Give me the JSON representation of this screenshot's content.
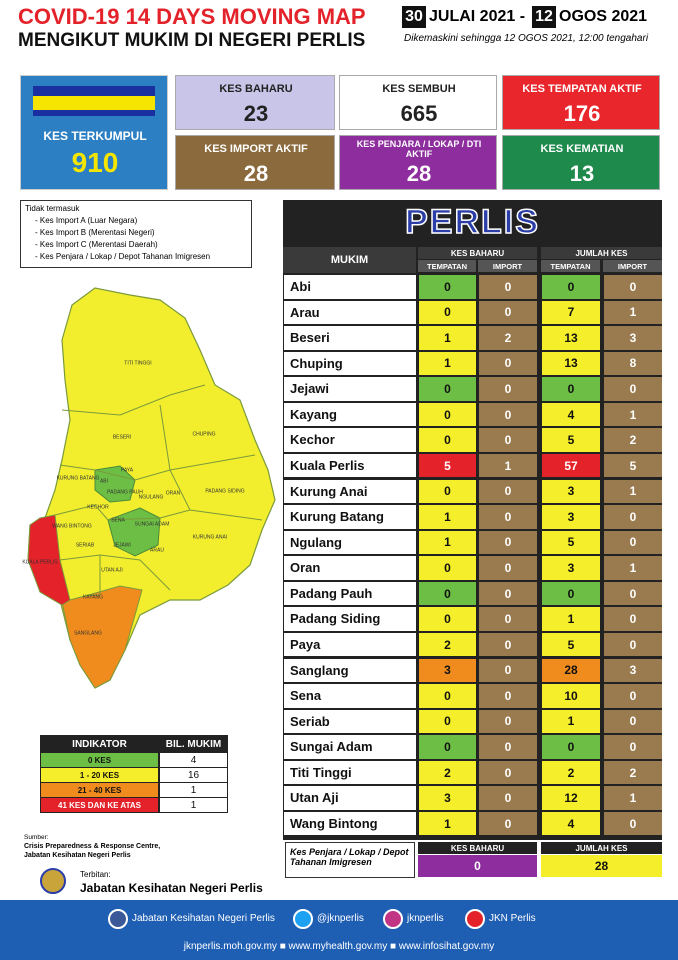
{
  "header": {
    "title": "COVID-19 14 DAYS MOVING MAP",
    "subtitle": "MENGIKUT MUKIM DI NEGERI PERLIS",
    "start_day": "30",
    "start_rest": "JULAI 2021 -",
    "end_day": "12",
    "end_rest": "OGOS 2021",
    "updated": "Dikemaskini sehingga  12 OGOS  2021, 12:00 tengahari"
  },
  "summary": {
    "cumulative": {
      "label": "KES TERKUMPUL",
      "value": 910
    },
    "cards": [
      {
        "label": "KES BAHARU",
        "value": 23,
        "color": "#c8c5e9"
      },
      {
        "label": "KES SEMBUH",
        "value": 665,
        "color": "#ffffff"
      },
      {
        "label": "KES TEMPATAN AKTIF",
        "value": 176,
        "color": "#e8262b"
      },
      {
        "label": "KES IMPORT AKTIF",
        "value": 28,
        "color": "#8b6a3d"
      },
      {
        "label": "KES PENJARA / LOKAP / DTI AKTIF",
        "value": 28,
        "color": "#8e2e9e"
      },
      {
        "label": "KES KEMATIAN",
        "value": 13,
        "color": "#1e8a4c"
      }
    ]
  },
  "exclusions": {
    "title": "Tidak termasuk",
    "items": [
      "- Kes Import A (Luar Negara)",
      "- Kes Import B (Merentasi Negeri)",
      "- Kes Import C (Merentasi Daerah)",
      "- Kes Penjara / Lokap / Depot Tahanan Imigresen"
    ]
  },
  "map": {
    "regions": [
      "TITI TINGGI",
      "BESERI",
      "CHUPING",
      "KURUNG BATANG",
      "PAYA",
      "ABI",
      "PADANG PAUH",
      "NGULANG",
      "ORAN",
      "PADANG SIDING",
      "KECHOR",
      "WANG BINTONG",
      "SENA",
      "SUNGAI ADAM",
      "SERIAB",
      "JEJAWI",
      "ARAU",
      "KURUNG ANAI",
      "UTAN AJI",
      "KUALA PERLIS",
      "KAYANG",
      "SANGLANG"
    ]
  },
  "table": {
    "state": "PERLIS",
    "col_mukim": "MUKIM",
    "group_new": "KES BAHARU",
    "group_total": "JUMLAH KES",
    "sub_local": "TEMPATAN",
    "sub_import": "IMPORT",
    "rows": [
      {
        "mukim": "Abi",
        "new_local": 0,
        "new_import": 0,
        "total_local": 0,
        "total_import": 0,
        "color": "#6dbe45"
      },
      {
        "mukim": "Arau",
        "new_local": 0,
        "new_import": 0,
        "total_local": 7,
        "total_import": 1,
        "color": "#f5ee2a"
      },
      {
        "mukim": "Beseri",
        "new_local": 1,
        "new_import": 2,
        "total_local": 13,
        "total_import": 3,
        "color": "#f5ee2a"
      },
      {
        "mukim": "Chuping",
        "new_local": 1,
        "new_import": 0,
        "total_local": 13,
        "total_import": 8,
        "color": "#f5ee2a"
      },
      {
        "mukim": "Jejawi",
        "new_local": 0,
        "new_import": 0,
        "total_local": 0,
        "total_import": 0,
        "color": "#6dbe45"
      },
      {
        "mukim": "Kayang",
        "new_local": 0,
        "new_import": 0,
        "total_local": 4,
        "total_import": 1,
        "color": "#f5ee2a"
      },
      {
        "mukim": "Kechor",
        "new_local": 0,
        "new_import": 0,
        "total_local": 5,
        "total_import": 2,
        "color": "#f5ee2a"
      },
      {
        "mukim": "Kuala Perlis",
        "new_local": 5,
        "new_import": 1,
        "total_local": 57,
        "total_import": 5,
        "color": "#e3222a"
      },
      {
        "mukim": "Kurung Anai",
        "new_local": 0,
        "new_import": 0,
        "total_local": 3,
        "total_import": 1,
        "color": "#f5ee2a"
      },
      {
        "mukim": "Kurung Batang",
        "new_local": 1,
        "new_import": 0,
        "total_local": 3,
        "total_import": 0,
        "color": "#f5ee2a"
      },
      {
        "mukim": "Ngulang",
        "new_local": 1,
        "new_import": 0,
        "total_local": 5,
        "total_import": 0,
        "color": "#f5ee2a"
      },
      {
        "mukim": "Oran",
        "new_local": 0,
        "new_import": 0,
        "total_local": 3,
        "total_import": 1,
        "color": "#f5ee2a"
      },
      {
        "mukim": "Padang Pauh",
        "new_local": 0,
        "new_import": 0,
        "total_local": 0,
        "total_import": 0,
        "color": "#6dbe45"
      },
      {
        "mukim": "Padang Siding",
        "new_local": 0,
        "new_import": 0,
        "total_local": 1,
        "total_import": 0,
        "color": "#f5ee2a"
      },
      {
        "mukim": "Paya",
        "new_local": 2,
        "new_import": 0,
        "total_local": 5,
        "total_import": 0,
        "color": "#f5ee2a"
      },
      {
        "mukim": "Sanglang",
        "new_local": 3,
        "new_import": 0,
        "total_local": 28,
        "total_import": 3,
        "color": "#f08c1e"
      },
      {
        "mukim": "Sena",
        "new_local": 0,
        "new_import": 0,
        "total_local": 10,
        "total_import": 0,
        "color": "#f5ee2a"
      },
      {
        "mukim": "Seriab",
        "new_local": 0,
        "new_import": 0,
        "total_local": 1,
        "total_import": 0,
        "color": "#f5ee2a"
      },
      {
        "mukim": "Sungai Adam",
        "new_local": 0,
        "new_import": 0,
        "total_local": 0,
        "total_import": 0,
        "color": "#6dbe45"
      },
      {
        "mukim": "Titi Tinggi",
        "new_local": 2,
        "new_import": 0,
        "total_local": 2,
        "total_import": 2,
        "color": "#f5ee2a"
      },
      {
        "mukim": "Utan Aji",
        "new_local": 3,
        "new_import": 0,
        "total_local": 12,
        "total_import": 1,
        "color": "#f5ee2a"
      },
      {
        "mukim": "Wang Bintong",
        "new_local": 1,
        "new_import": 0,
        "total_local": 4,
        "total_import": 0,
        "color": "#f5ee2a"
      }
    ]
  },
  "prison": {
    "label": "Kes Penjara / Lokap / Depot Tahanan Imigresen",
    "new_header": "KES BAHARU",
    "new": 0,
    "total_header": "JUMLAH KES",
    "total": 28
  },
  "legend": {
    "header_indicator": "INDIKATOR",
    "header_count": "BIL. MUKIM",
    "rows": [
      {
        "label": "0 KES",
        "count": 4,
        "color": "#6dbe45"
      },
      {
        "label": "1 - 20 KES",
        "count": 16,
        "color": "#f5ee2a"
      },
      {
        "label": "21 - 40 KES",
        "count": 1,
        "color": "#f08c1e"
      },
      {
        "label": "41 KES DAN KE ATAS",
        "count": 1,
        "color": "#e3222a"
      }
    ]
  },
  "source": {
    "label": "Sumber:",
    "lines": [
      "Crisis Preparedness & Response Centre,",
      "Jabatan Kesihatan Negeri Perlis"
    ]
  },
  "publisher": {
    "label": "Terbitan:",
    "name": "Jabatan Kesihatan Negeri Perlis"
  },
  "footer": {
    "social": [
      "Jabatan Kesihatan Negeri Perlis",
      "@jknperlis",
      "jknperlis",
      "JKN Perlis"
    ],
    "websites": "jknperlis.moh.gov.my ■ www.myhealth.gov.my ■ www.infosihat.gov.my"
  }
}
